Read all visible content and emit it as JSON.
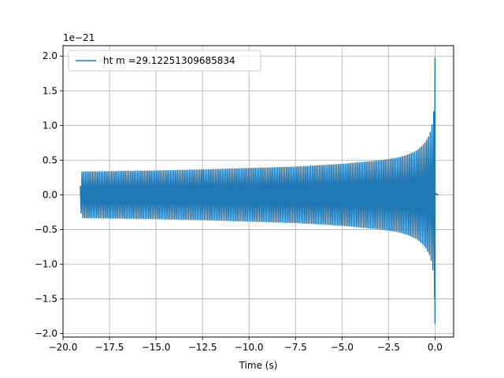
{
  "chart_data": {
    "type": "line",
    "title": "",
    "xlabel": "Time (s)",
    "ylabel": "",
    "y_offset_label": "1e−21",
    "xlim": [
      -20.0,
      1.0
    ],
    "ylim": [
      -2.05,
      2.15
    ],
    "grid": true,
    "legend_position": "top-left",
    "x_ticks": [
      -20.0,
      -17.5,
      -15.0,
      -12.5,
      -10.0,
      -7.5,
      -5.0,
      -2.5,
      0.0
    ],
    "x_tick_labels": [
      "−20.0",
      "−17.5",
      "−15.0",
      "−12.5",
      "−10.0",
      "−7.5",
      "−5.0",
      "−2.5",
      "0.0"
    ],
    "y_ticks": [
      -2.0,
      -1.5,
      -1.0,
      -0.5,
      0.0,
      0.5,
      1.0,
      1.5,
      2.0
    ],
    "y_tick_labels": [
      "−2.0",
      "−1.5",
      "−1.0",
      "−0.5",
      "0.0",
      "0.5",
      "1.0",
      "1.5",
      "2.0"
    ],
    "series": [
      {
        "name": "ht m =29.12251309685834",
        "color": "#1f77b4",
        "envelope": {
          "x": [
            -19.07,
            -19.0,
            -17.5,
            -15.0,
            -12.5,
            -10.0,
            -7.5,
            -5.0,
            -3.0,
            -2.0,
            -1.5,
            -1.0,
            -0.7,
            -0.5,
            -0.3,
            -0.2,
            -0.1,
            -0.05,
            -0.02,
            0.0
          ],
          "upper": [
            0.13,
            0.33,
            0.335,
            0.345,
            0.36,
            0.38,
            0.4,
            0.44,
            0.49,
            0.53,
            0.57,
            0.63,
            0.7,
            0.76,
            0.86,
            0.95,
            1.1,
            1.25,
            1.5,
            1.97
          ],
          "lower": [
            -0.13,
            -0.33,
            -0.335,
            -0.345,
            -0.36,
            -0.38,
            -0.4,
            -0.44,
            -0.49,
            -0.53,
            -0.57,
            -0.63,
            -0.7,
            -0.76,
            -0.86,
            -0.95,
            -1.1,
            -1.25,
            -1.5,
            -1.85
          ]
        },
        "ringdown": {
          "x": [
            0.0,
            0.05,
            0.1,
            0.2
          ],
          "values": [
            0.0,
            0.02,
            0.0,
            0.0
          ]
        }
      }
    ]
  }
}
